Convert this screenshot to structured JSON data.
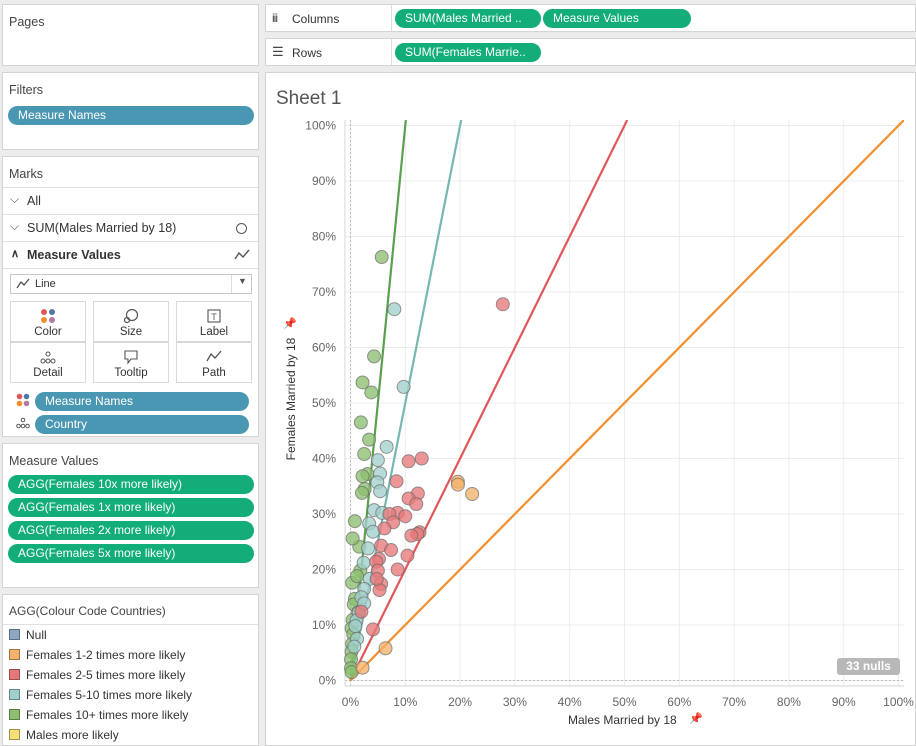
{
  "left": {
    "pages_title": "Pages",
    "filters_title": "Filters",
    "filter_pill": "Measure Names",
    "marks_title": "Marks",
    "marks_rows": [
      {
        "label": "All",
        "icon": "chevron-down"
      },
      {
        "label": "SUM(Males Married by 18)",
        "icon": "circle-mark"
      },
      {
        "label": "Measure Values",
        "icon": "line-mark"
      }
    ],
    "mark_type": "Line",
    "cards": [
      "Color",
      "Size",
      "Label",
      "Detail",
      "Tooltip",
      "Path"
    ],
    "card_pills": [
      "Measure Names",
      "Country"
    ],
    "measure_values_title": "Measure Values",
    "measure_values": [
      "AGG(Females 10x more likely)",
      "AGG(Females 1x more likely)",
      "AGG(Females 2x more likely)",
      "AGG(Females 5x more likely)"
    ],
    "legend_title": "AGG(Colour Code Countries)",
    "legend": [
      {
        "label": "Null",
        "color": "#8fa6c4"
      },
      {
        "label": "Females 1-2 times more likely",
        "color": "#f5b26c"
      },
      {
        "label": "Females 2-5 times more likely",
        "color": "#e7787a"
      },
      {
        "label": "Females 5-10 times more likely",
        "color": "#a1d0cc"
      },
      {
        "label": "Females 10+ times more likely",
        "color": "#8cbf6f"
      },
      {
        "label": "Males more likely",
        "color": "#f6df79"
      }
    ]
  },
  "shelves": {
    "columns_label": "Columns",
    "rows_label": "Rows",
    "columns_pills": [
      "SUM(Males Married ..",
      "Measure Values"
    ],
    "rows_pills": [
      "SUM(Females Marrie.."
    ]
  },
  "sheet": {
    "title": "Sheet 1",
    "nulls_badge": "33 nulls"
  },
  "chart_data": {
    "type": "scatter",
    "xlabel": "Males Married by 18",
    "ylabel": "Females Married by 18",
    "xlim": [
      -0.01,
      1.01
    ],
    "ylim": [
      -0.01,
      1.01
    ],
    "x_ticks": [
      "0%",
      "10%",
      "20%",
      "30%",
      "40%",
      "50%",
      "60%",
      "70%",
      "80%",
      "90%",
      "100%"
    ],
    "y_ticks": [
      "0%",
      "10%",
      "20%",
      "30%",
      "40%",
      "50%",
      "60%",
      "70%",
      "80%",
      "90%",
      "100%"
    ],
    "grid": true,
    "lines": [
      {
        "name": "AGG(Females 10x more likely)",
        "slope": 10,
        "color": "#59a14f"
      },
      {
        "name": "AGG(Females 5x more likely)",
        "slope": 5,
        "color": "#76b7b2"
      },
      {
        "name": "AGG(Females 2x more likely)",
        "slope": 2,
        "color": "#e15759"
      },
      {
        "name": "AGG(Females 1x more likely)",
        "slope": 1,
        "color": "#f28e2b"
      }
    ],
    "series": [
      {
        "name": "Females 10+ times more likely",
        "color": "#8cbf6f",
        "points": [
          [
            0.057,
            0.763
          ],
          [
            0.043,
            0.584
          ],
          [
            0.022,
            0.537
          ],
          [
            0.038,
            0.519
          ],
          [
            0.019,
            0.465
          ],
          [
            0.034,
            0.434
          ],
          [
            0.025,
            0.408
          ],
          [
            0.031,
            0.372
          ],
          [
            0.022,
            0.368
          ],
          [
            0.026,
            0.345
          ],
          [
            0.021,
            0.338
          ],
          [
            0.008,
            0.287
          ],
          [
            0.016,
            0.241
          ],
          [
            0.004,
            0.256
          ],
          [
            0.018,
            0.198
          ],
          [
            0.003,
            0.176
          ],
          [
            0.012,
            0.188
          ],
          [
            0.008,
            0.147
          ],
          [
            0.006,
            0.137
          ],
          [
            0.014,
            0.123
          ],
          [
            0.004,
            0.109
          ],
          [
            0.002,
            0.094
          ],
          [
            0.005,
            0.083
          ],
          [
            0.003,
            0.066
          ],
          [
            0.002,
            0.052
          ],
          [
            0.001,
            0.038
          ],
          [
            0.001,
            0.022
          ],
          [
            0.002,
            0.015
          ]
        ]
      },
      {
        "name": "Females 5-10 times more likely",
        "color": "#a1d0cc",
        "points": [
          [
            0.08,
            0.669
          ],
          [
            0.097,
            0.529
          ],
          [
            0.066,
            0.421
          ],
          [
            0.05,
            0.397
          ],
          [
            0.054,
            0.373
          ],
          [
            0.049,
            0.357
          ],
          [
            0.054,
            0.341
          ],
          [
            0.043,
            0.307
          ],
          [
            0.058,
            0.302
          ],
          [
            0.034,
            0.283
          ],
          [
            0.041,
            0.268
          ],
          [
            0.032,
            0.238
          ],
          [
            0.024,
            0.212
          ],
          [
            0.035,
            0.183
          ],
          [
            0.025,
            0.165
          ],
          [
            0.02,
            0.15
          ],
          [
            0.015,
            0.122
          ],
          [
            0.011,
            0.108
          ],
          [
            0.025,
            0.139
          ],
          [
            0.009,
            0.098
          ],
          [
            0.012,
            0.075
          ],
          [
            0.007,
            0.061
          ]
        ]
      },
      {
        "name": "Females 2-5 times more likely",
        "color": "#e7787a",
        "points": [
          [
            0.278,
            0.678
          ],
          [
            0.13,
            0.4
          ],
          [
            0.106,
            0.395
          ],
          [
            0.084,
            0.359
          ],
          [
            0.123,
            0.337
          ],
          [
            0.106,
            0.328
          ],
          [
            0.086,
            0.302
          ],
          [
            0.071,
            0.3
          ],
          [
            0.12,
            0.318
          ],
          [
            0.1,
            0.296
          ],
          [
            0.078,
            0.285
          ],
          [
            0.062,
            0.274
          ],
          [
            0.126,
            0.267
          ],
          [
            0.122,
            0.264
          ],
          [
            0.111,
            0.261
          ],
          [
            0.056,
            0.243
          ],
          [
            0.074,
            0.235
          ],
          [
            0.104,
            0.225
          ],
          [
            0.052,
            0.219
          ],
          [
            0.047,
            0.214
          ],
          [
            0.05,
            0.198
          ],
          [
            0.086,
            0.2
          ],
          [
            0.056,
            0.174
          ],
          [
            0.053,
            0.163
          ],
          [
            0.048,
            0.183
          ],
          [
            0.041,
            0.092
          ],
          [
            0.02,
            0.124
          ]
        ]
      },
      {
        "name": "Females 1-2 times more likely",
        "color": "#f5b26c",
        "points": [
          [
            0.196,
            0.358
          ],
          [
            0.196,
            0.353
          ],
          [
            0.222,
            0.336
          ],
          [
            0.064,
            0.058
          ],
          [
            0.022,
            0.023
          ]
        ]
      }
    ]
  }
}
